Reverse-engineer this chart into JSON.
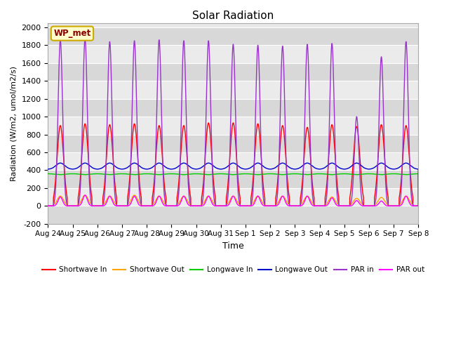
{
  "title": "Solar Radiation",
  "xlabel": "Time",
  "ylabel": "Radiation (W/m2, umol/m2/s)",
  "ylim": [
    -200,
    2050
  ],
  "yticks": [
    -200,
    0,
    200,
    400,
    600,
    800,
    1000,
    1200,
    1400,
    1600,
    1800,
    2000
  ],
  "station_label": "WP_met",
  "figure_bg": "#ffffff",
  "plot_bg": "#e8e8e8",
  "num_days": 15,
  "day_labels": [
    "Aug 24",
    "Aug 25",
    "Aug 26",
    "Aug 27",
    "Aug 28",
    "Aug 29",
    "Aug 30",
    "Aug 31",
    "Sep 1",
    "Sep 2",
    "Sep 3",
    "Sep 4",
    "Sep 5",
    "Sep 6",
    "Sep 7",
    "Sep 8"
  ],
  "series": {
    "shortwave_in": {
      "color": "#ff0000",
      "label": "Shortwave In"
    },
    "shortwave_out": {
      "color": "#ffa500",
      "label": "Shortwave Out"
    },
    "longwave_in": {
      "color": "#00cc00",
      "label": "Longwave In"
    },
    "longwave_out": {
      "color": "#0000cc",
      "label": "Longwave Out"
    },
    "par_in": {
      "color": "#9933cc",
      "label": "PAR in"
    },
    "par_out": {
      "color": "#ff00ff",
      "label": "PAR out"
    }
  }
}
